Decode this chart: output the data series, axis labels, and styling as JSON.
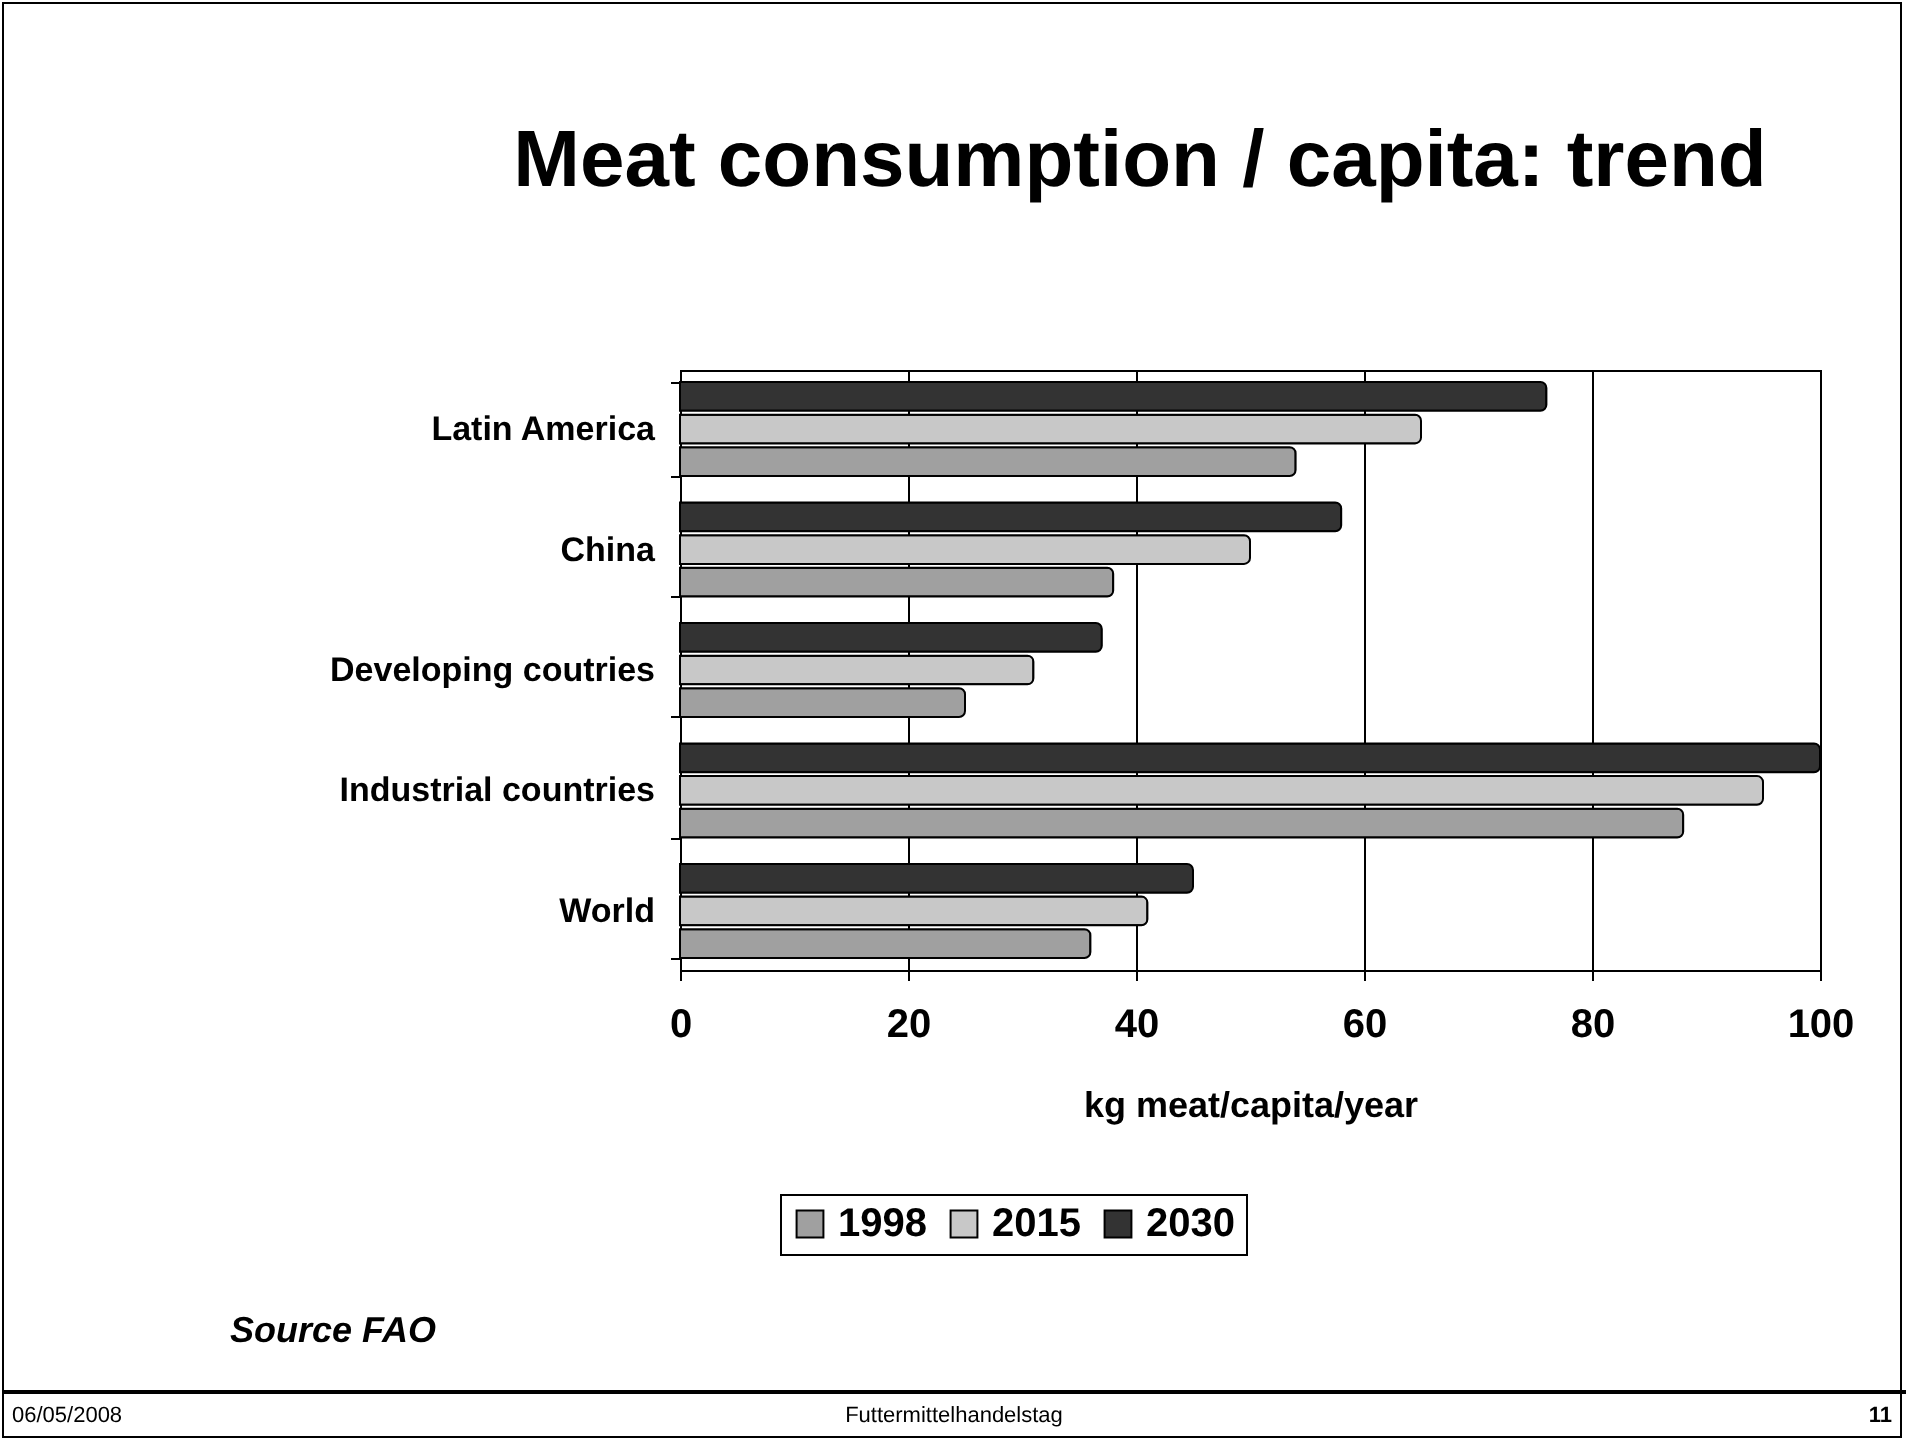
{
  "chart_data": {
    "type": "bar",
    "orientation": "horizontal",
    "title": "Meat consumption / capita: trend",
    "xlabel": "kg meat/capita/year",
    "categories": [
      "Latin America",
      "China",
      "Developing coutries",
      "Industrial countries",
      "World"
    ],
    "series": [
      {
        "name": "1998",
        "color": "#a0a0a0",
        "values": [
          54,
          38,
          25,
          88,
          36
        ]
      },
      {
        "name": "2015",
        "color": "#c8c8c8",
        "values": [
          65,
          50,
          31,
          95,
          41
        ]
      },
      {
        "name": "2030",
        "color": "#333333",
        "values": [
          76,
          58,
          37,
          100,
          45
        ]
      }
    ],
    "xlim": [
      0,
      100
    ],
    "xticks": [
      0,
      20,
      40,
      60,
      80,
      100
    ],
    "grid": "x",
    "legend": "bottom",
    "annotations": [
      "Source FAO",
      "06/05/2008",
      "Futtermittelhandelstag",
      "11"
    ]
  }
}
